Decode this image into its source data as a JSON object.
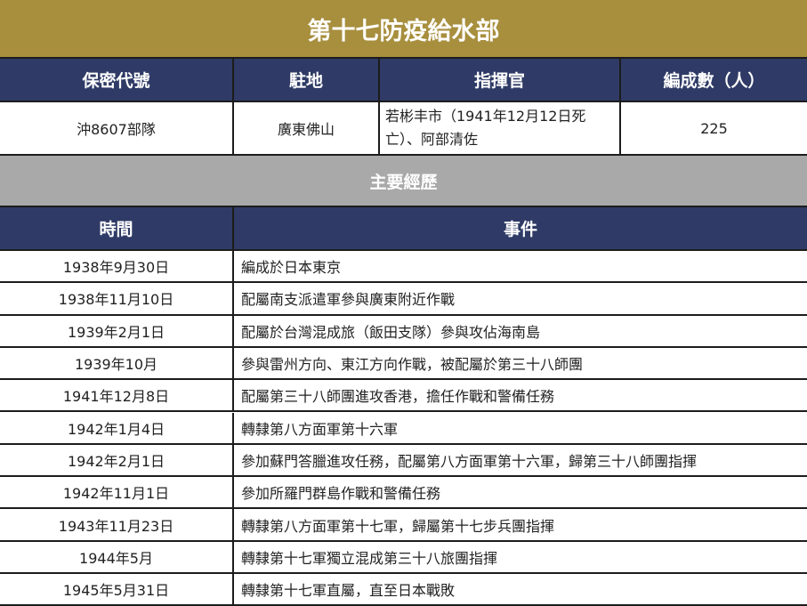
{
  "title": "第十七防疫給水部",
  "info": {
    "headers": [
      "保密代號",
      "駐地",
      "指揮官",
      "編成數（人）"
    ],
    "values": [
      "沖8607部隊",
      "廣東佛山",
      "若彬丰市（1941年12月12日死亡）、阿部清佐",
      "225"
    ]
  },
  "section_title": "主要經歷",
  "history": {
    "headers": [
      "時間",
      "事件"
    ],
    "rows": [
      {
        "date": "1938年9月30日",
        "event": "編成於日本東京"
      },
      {
        "date": "1938年11月10日",
        "event": "配屬南支派遣軍參與廣東附近作戰"
      },
      {
        "date": "1939年2月1日",
        "event": "配屬於台灣混成旅（飯田支隊）參與攻佔海南島"
      },
      {
        "date": "1939年10月",
        "event": "參與雷州方向、東江方向作戰，被配屬於第三十八師團"
      },
      {
        "date": "1941年12月8日",
        "event": "配屬第三十八師團進攻香港，擔任作戰和警備任務"
      },
      {
        "date": "1942年1月4日",
        "event": "轉隸第八方面軍第十六軍"
      },
      {
        "date": "1942年2月1日",
        "event": "參加蘇門答臘進攻任務，配屬第八方面軍第十六軍，歸第三十八師團指揮"
      },
      {
        "date": "1942年11月1日",
        "event": "參加所羅門群島作戰和警備任務"
      },
      {
        "date": "1943年11月23日",
        "event": "轉隸第八方面軍第十七軍，歸屬第十七步兵團指揮"
      },
      {
        "date": "1944年5月",
        "event": "轉隸第十七軍獨立混成第三十八旅團指揮"
      },
      {
        "date": "1945年5月31日",
        "event": "轉隸第十七軍直屬，直至日本戰敗"
      }
    ]
  }
}
